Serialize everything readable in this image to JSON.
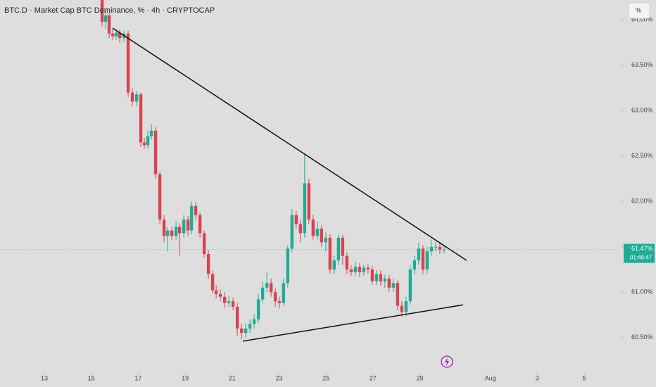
{
  "chart_data": {
    "type": "candlestick",
    "title": "BTC.D · Market Cap BTC Dominance, % · 4h · CRYPTOCAP",
    "unit_button": "%",
    "up_color": "#22ab94",
    "down_color": "#d9434f",
    "x": [
      15.46,
      15.61,
      15.76,
      15.91,
      16.06,
      16.21,
      16.39,
      16.57,
      16.75,
      16.93,
      17.11,
      17.26,
      17.41,
      17.56,
      17.74,
      17.92,
      18.1,
      18.25,
      18.43,
      18.61,
      18.76,
      18.94,
      19.12,
      19.27,
      19.45,
      19.63,
      19.81,
      19.99,
      20.17,
      20.32,
      20.5,
      20.68,
      20.86,
      21.04,
      21.22,
      21.4,
      21.58,
      21.76,
      21.94,
      22.12,
      22.3,
      22.48,
      22.66,
      22.84,
      23.01,
      23.19,
      23.37,
      23.55,
      23.73,
      23.91,
      24.09,
      24.27,
      24.45,
      24.63,
      24.81,
      24.99,
      25.17,
      25.35,
      25.53,
      25.71,
      25.89,
      26.07,
      26.25,
      26.43,
      26.61,
      26.79,
      26.97,
      27.15,
      27.33,
      27.51,
      27.69,
      27.87,
      28.05,
      28.23,
      28.41,
      28.59,
      28.77,
      28.95,
      29.13,
      29.31,
      29.49,
      29.67,
      29.85,
      30.03
    ],
    "open": [
      64.22,
      63.98,
      64.05,
      63.85,
      63.82,
      63.86,
      63.8,
      63.85,
      63.2,
      63.1,
      63.18,
      62.65,
      62.62,
      62.72,
      62.78,
      62.3,
      61.8,
      61.62,
      61.68,
      61.62,
      61.72,
      61.65,
      61.8,
      61.68,
      61.95,
      61.85,
      61.65,
      61.42,
      61.2,
      61.02,
      60.98,
      60.95,
      60.88,
      60.9,
      60.84,
      60.6,
      60.55,
      60.6,
      60.65,
      60.7,
      60.92,
      61.05,
      61.1,
      61.0,
      60.9,
      60.88,
      61.1,
      61.48,
      61.85,
      61.75,
      61.65,
      62.2,
      61.8,
      61.62,
      61.7,
      61.55,
      61.6,
      61.25,
      61.35,
      61.6,
      61.4,
      61.25,
      61.22,
      61.28,
      61.22,
      61.27,
      61.25,
      61.12,
      61.2,
      61.12,
      61.15,
      61.05,
      61.1,
      60.85,
      60.78,
      60.9,
      61.25,
      61.35,
      61.48,
      61.25,
      61.45,
      61.5,
      61.5,
      61.47
    ],
    "high": [
      64.3,
      64.1,
      64.08,
      63.9,
      63.9,
      63.9,
      63.88,
      63.88,
      63.25,
      63.22,
      63.2,
      62.7,
      62.78,
      62.85,
      62.82,
      62.33,
      61.85,
      61.72,
      61.72,
      61.78,
      61.76,
      61.85,
      61.84,
      62.0,
      61.99,
      61.88,
      61.68,
      61.46,
      61.24,
      61.08,
      61.03,
      61.0,
      60.96,
      60.94,
      60.88,
      60.65,
      60.66,
      60.7,
      60.76,
      60.98,
      61.12,
      61.22,
      61.15,
      61.04,
      60.95,
      61.15,
      61.52,
      61.92,
      61.9,
      61.8,
      62.52,
      62.25,
      61.85,
      61.78,
      61.74,
      61.66,
      61.64,
      61.4,
      61.64,
      61.63,
      61.44,
      61.3,
      61.34,
      61.32,
      61.3,
      61.31,
      61.29,
      61.24,
      61.24,
      61.19,
      61.19,
      61.15,
      61.13,
      60.9,
      60.95,
      61.3,
      61.4,
      61.55,
      61.52,
      61.5,
      61.58,
      61.55,
      61.55,
      61.52
    ],
    "low": [
      63.93,
      63.9,
      63.8,
      63.78,
      63.78,
      63.75,
      63.76,
      63.15,
      63.05,
      63.05,
      62.6,
      62.58,
      62.58,
      62.68,
      62.25,
      61.75,
      61.55,
      61.45,
      61.57,
      61.58,
      61.4,
      61.6,
      61.62,
      61.64,
      61.8,
      61.6,
      61.38,
      61.15,
      60.98,
      60.93,
      60.9,
      60.83,
      60.84,
      60.8,
      60.52,
      60.48,
      60.5,
      60.55,
      60.6,
      60.66,
      60.88,
      61.0,
      60.95,
      60.84,
      60.82,
      60.85,
      61.05,
      61.44,
      61.7,
      61.55,
      61.6,
      61.75,
      61.58,
      61.58,
      61.5,
      61.45,
      61.2,
      61.2,
      61.3,
      61.3,
      61.2,
      61.18,
      61.18,
      61.17,
      61.18,
      61.2,
      61.08,
      61.08,
      61.07,
      61.05,
      61.0,
      61.0,
      60.8,
      60.73,
      60.74,
      60.86,
      61.2,
      61.3,
      61.2,
      61.2,
      61.4,
      61.45,
      61.42,
      61.43
    ],
    "close": [
      63.98,
      64.05,
      63.85,
      63.82,
      63.86,
      63.8,
      63.85,
      63.2,
      63.1,
      63.18,
      62.65,
      62.62,
      62.72,
      62.78,
      62.3,
      61.8,
      61.62,
      61.68,
      61.62,
      61.72,
      61.65,
      61.8,
      61.68,
      61.95,
      61.85,
      61.65,
      61.42,
      61.2,
      61.02,
      60.98,
      60.95,
      60.88,
      60.9,
      60.84,
      60.6,
      60.55,
      60.6,
      60.65,
      60.7,
      60.92,
      61.05,
      61.1,
      61.0,
      60.9,
      60.88,
      61.1,
      61.48,
      61.85,
      61.75,
      61.65,
      62.2,
      61.8,
      61.62,
      61.7,
      61.55,
      61.6,
      61.25,
      61.35,
      61.6,
      61.4,
      61.25,
      61.22,
      61.28,
      61.22,
      61.27,
      61.25,
      61.12,
      61.2,
      61.12,
      61.15,
      61.05,
      61.1,
      60.85,
      60.78,
      60.9,
      61.25,
      61.35,
      61.48,
      61.25,
      61.45,
      61.5,
      61.5,
      61.47,
      61.47
    ],
    "xlim": [
      11.11,
      37.56
    ],
    "ylim": [
      60.11,
      64.22
    ],
    "xticks": [
      13,
      15,
      17,
      19,
      21,
      23,
      25,
      27,
      29,
      {
        "value": 32,
        "label": "Aug"
      },
      {
        "value": 34,
        "label": "3"
      },
      {
        "value": 36,
        "label": "5"
      }
    ],
    "yticks": [
      {
        "value": 60.5,
        "label": "60.50%"
      },
      {
        "value": 61,
        "label": "61.00%"
      },
      {
        "value": 61.5,
        "label": "61.50%"
      },
      {
        "value": 62,
        "label": "62.00%"
      },
      {
        "value": 62.5,
        "label": "62.50%"
      },
      {
        "value": 63,
        "label": "63.00%"
      },
      {
        "value": 63.5,
        "label": "63.50%"
      },
      {
        "value": 64,
        "label": "64.00%"
      }
    ],
    "trendlines": [
      {
        "x": [
          15.91,
          30.99
        ],
        "y": [
          63.91,
          61.35
        ]
      },
      {
        "x": [
          21.46,
          30.84
        ],
        "y": [
          60.46,
          60.86
        ]
      }
    ],
    "last_price": {
      "value": 61.47,
      "label": "61.47%"
    },
    "countdown": "01:46:47"
  }
}
